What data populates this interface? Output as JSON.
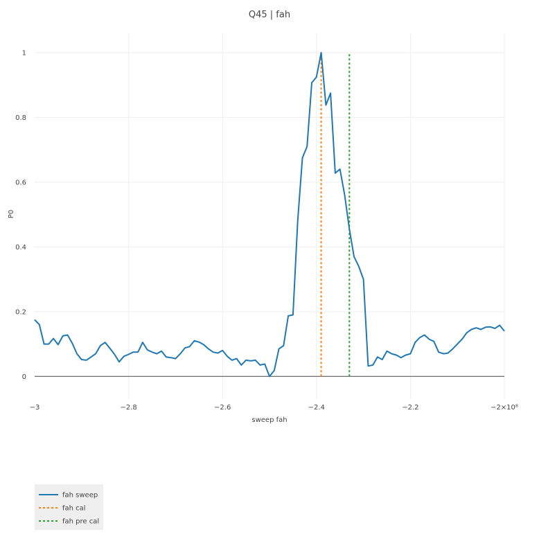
{
  "chart_data": {
    "type": "line",
    "title": "Q45 | fah",
    "xlabel": "sweep fah",
    "ylabel": "P0",
    "xlim": [
      -300000000,
      -200000000
    ],
    "ylim": [
      -0.07,
      1.06
    ],
    "x_ticks": [
      {
        "value": -300000000,
        "label": "−3"
      },
      {
        "value": -280000000,
        "label": "−2.8"
      },
      {
        "value": -260000000,
        "label": "−2.6"
      },
      {
        "value": -240000000,
        "label": "−2.4"
      },
      {
        "value": -220000000,
        "label": "−2.2"
      },
      {
        "value": -200000000,
        "label": "−2×10⁸"
      }
    ],
    "y_ticks": [
      {
        "value": 0,
        "label": "0"
      },
      {
        "value": 0.2,
        "label": "0.2"
      },
      {
        "value": 0.4,
        "label": "0.4"
      },
      {
        "value": 0.6,
        "label": "0.6"
      },
      {
        "value": 0.8,
        "label": "0.8"
      },
      {
        "value": 1,
        "label": "1"
      }
    ],
    "grid": true,
    "legend_position": "bottom-left",
    "series": [
      {
        "name": "fah sweep",
        "color": "#1f77b4",
        "style": "solid",
        "x": [
          -300000000,
          -299000000,
          -298000000,
          -297000000,
          -296000000,
          -295000000,
          -294000000,
          -293000000,
          -292000000,
          -291000000,
          -290000000,
          -289000000,
          -288000000,
          -287000000,
          -286000000,
          -285000000,
          -284000000,
          -283000000,
          -282000000,
          -281000000,
          -280000000,
          -279000000,
          -278000000,
          -277000000,
          -276000000,
          -275000000,
          -274000000,
          -273000000,
          -272000000,
          -271000000,
          -270000000,
          -269000000,
          -268000000,
          -267000000,
          -266000000,
          -265000000,
          -264000000,
          -263000000,
          -262000000,
          -261000000,
          -260000000,
          -259000000,
          -258000000,
          -257000000,
          -256000000,
          -255000000,
          -254000000,
          -253000000,
          -252000000,
          -251000000,
          -250000000,
          -249000000,
          -248000000,
          -247000000,
          -246000000,
          -245000000,
          -244000000,
          -243000000,
          -242000000,
          -241000000,
          -240000000,
          -239000000,
          -238000000,
          -237000000,
          -236000000,
          -235000000,
          -234000000,
          -233000000,
          -232000000,
          -231000000,
          -230000000,
          -229000000,
          -228000000,
          -227000000,
          -226000000,
          -225000000,
          -224000000,
          -223000000,
          -222000000,
          -221000000,
          -220000000,
          -219000000,
          -218000000,
          -217000000,
          -216000000,
          -215000000,
          -214000000,
          -213000000,
          -212000000,
          -211000000,
          -210000000,
          -209000000,
          -208000000,
          -207000000,
          -206000000,
          -205000000,
          -204000000,
          -203000000,
          -202000000,
          -201000000,
          -200000000
        ],
        "y": [
          0.175,
          0.16,
          0.1,
          0.1,
          0.117,
          0.098,
          0.125,
          0.128,
          0.103,
          0.07,
          0.052,
          0.05,
          0.06,
          0.07,
          0.095,
          0.105,
          0.087,
          0.068,
          0.045,
          0.062,
          0.068,
          0.075,
          0.075,
          0.105,
          0.082,
          0.075,
          0.07,
          0.078,
          0.06,
          0.058,
          0.055,
          0.07,
          0.088,
          0.092,
          0.11,
          0.106,
          0.098,
          0.085,
          0.075,
          0.072,
          0.08,
          0.062,
          0.05,
          0.055,
          0.035,
          0.05,
          0.048,
          0.05,
          0.035,
          0.038,
          0.0,
          0.018,
          0.085,
          0.095,
          0.187,
          0.19,
          0.48,
          0.675,
          0.71,
          0.907,
          0.925,
          1.0,
          0.838,
          0.875,
          0.628,
          0.64,
          0.56,
          0.455,
          0.37,
          0.34,
          0.3,
          0.032,
          0.035,
          0.06,
          0.052,
          0.078,
          0.07,
          0.066,
          0.058,
          0.066,
          0.07,
          0.105,
          0.12,
          0.128,
          0.115,
          0.108,
          0.075,
          0.07,
          0.072,
          0.085,
          0.1,
          0.115,
          0.135,
          0.145,
          0.15,
          0.145,
          0.152,
          0.153,
          0.148,
          0.158,
          0.14
        ]
      },
      {
        "name": "fah cal",
        "color": "#ff7f0e",
        "style": "dotted",
        "x": [
          -239000000,
          -239000000
        ],
        "y": [
          0,
          1
        ]
      },
      {
        "name": "fah pre cal",
        "color": "#2ca02c",
        "style": "dotted",
        "x": [
          -233000000,
          -233000000
        ],
        "y": [
          0,
          1
        ]
      }
    ]
  }
}
